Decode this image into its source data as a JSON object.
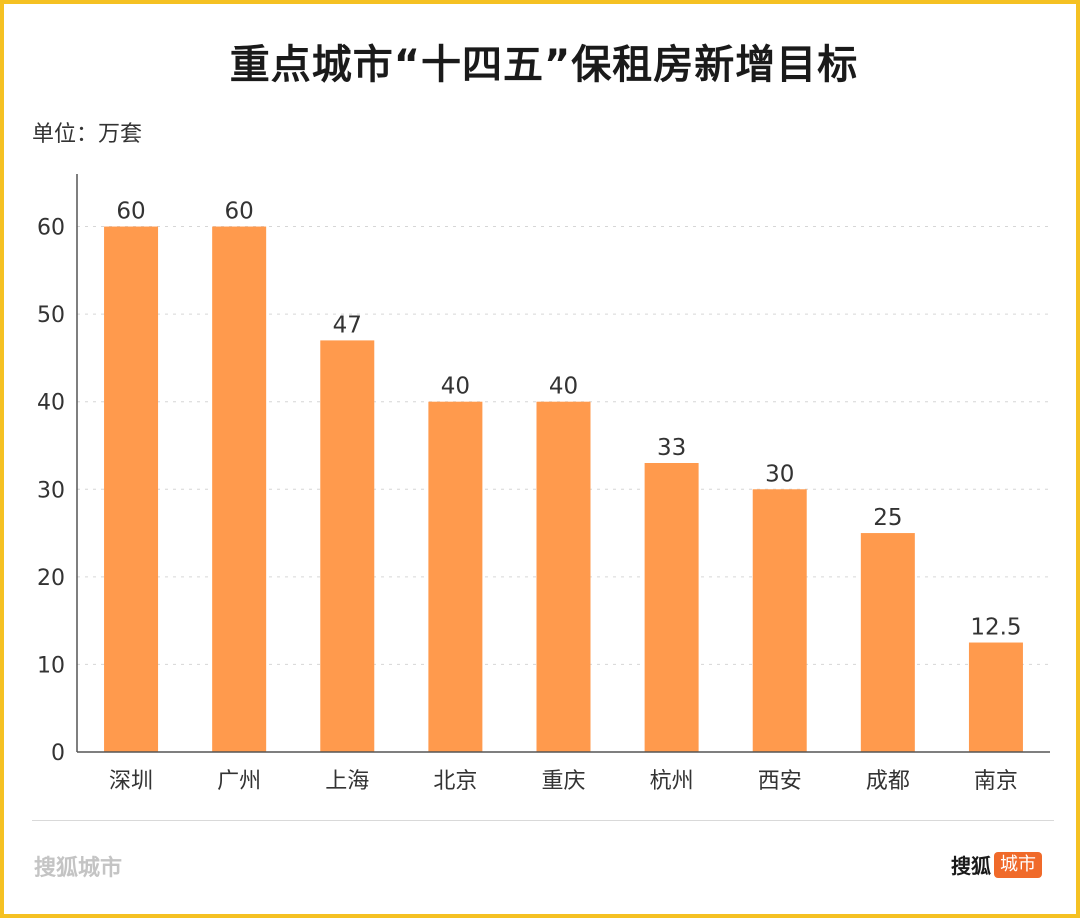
{
  "chart_data": {
    "type": "bar",
    "title": "重点城市“十四五”保租房新增目标",
    "unit_label": "单位：万套",
    "categories": [
      "深圳",
      "广州",
      "上海",
      "北京",
      "重庆",
      "杭州",
      "西安",
      "成都",
      "南京"
    ],
    "values": [
      60,
      60,
      47,
      40,
      40,
      33,
      30,
      25,
      12.5
    ],
    "value_labels": [
      "60",
      "60",
      "47",
      "40",
      "40",
      "33",
      "30",
      "25",
      "12.5"
    ],
    "ylim": [
      0,
      66
    ],
    "yticks": [
      0,
      10,
      20,
      30,
      40,
      50,
      60
    ],
    "grid": true,
    "bar_color": "#ff9a4d"
  },
  "footer": {
    "source": "搜狐城市",
    "brand_name": "搜狐",
    "brand_badge": "城市",
    "badge_color": "#f06a2a"
  }
}
